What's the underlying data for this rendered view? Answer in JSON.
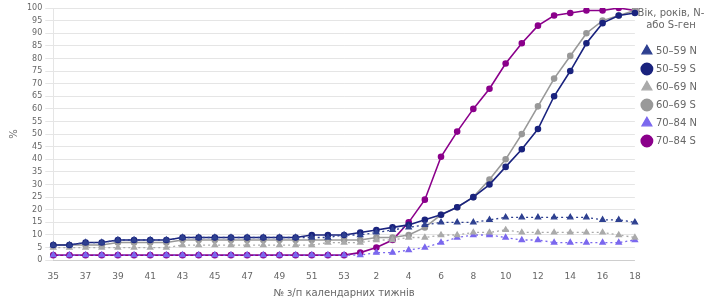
{
  "chart_data": {
    "type": "line",
    "x_label": "№ з/п календарних тижнів",
    "y_label": "%",
    "legend_title": "Вік, років, N-\nабо S-ген",
    "legend": "right",
    "grid": "y",
    "categories": [
      "35",
      null,
      "37",
      null,
      "39",
      null,
      "41",
      null,
      "43",
      null,
      "45",
      null,
      "47",
      null,
      "49",
      null,
      "51",
      null,
      "53",
      null,
      "2",
      null,
      "4",
      null,
      "6",
      null,
      "8",
      null,
      "10",
      null,
      "12",
      null,
      "14",
      null,
      "16",
      null,
      "18"
    ],
    "ylim": [
      0,
      100
    ],
    "yticks": [
      0,
      5,
      10,
      15,
      20,
      25,
      30,
      35,
      40,
      45,
      50,
      55,
      60,
      65,
      70,
      75,
      80,
      85,
      90,
      95,
      100
    ],
    "series": [
      {
        "name": "50–59 N",
        "color": "#2e4090",
        "line_style": "dotted",
        "marker": "triangle",
        "values": [
          6,
          6,
          7,
          7,
          8,
          8,
          8,
          8,
          9,
          9,
          9,
          9,
          9,
          9,
          9,
          9,
          9,
          9,
          10,
          10,
          11,
          12,
          13,
          14,
          15,
          15,
          15,
          16,
          17,
          17,
          17,
          17,
          17,
          17,
          16,
          16,
          15
        ]
      },
      {
        "name": "50–59 S",
        "color": "#1a237e",
        "line_style": "solid",
        "marker": "circle",
        "values": [
          6,
          6,
          7,
          7,
          8,
          8,
          8,
          8,
          9,
          9,
          9,
          9,
          9,
          9,
          9,
          9,
          10,
          10,
          10,
          11,
          12,
          13,
          14,
          16,
          18,
          21,
          25,
          30,
          37,
          44,
          52,
          65,
          75,
          86,
          94,
          97,
          98
        ]
      },
      {
        "name": "60–69 N",
        "color": "#aaaaaa",
        "line_style": "dotted",
        "marker": "triangle",
        "values": [
          5,
          5,
          5,
          5,
          5,
          5,
          5,
          5,
          6,
          6,
          6,
          6,
          6,
          6,
          6,
          6,
          6,
          7,
          7,
          7,
          8,
          8,
          9,
          9,
          10,
          10,
          11,
          11,
          12,
          11,
          11,
          11,
          11,
          11,
          11,
          10,
          9
        ]
      },
      {
        "name": "60–69 S",
        "color": "#999999",
        "line_style": "solid",
        "marker": "circle",
        "values": [
          6,
          6,
          6,
          6,
          7,
          7,
          7,
          7,
          8,
          8,
          8,
          8,
          8,
          8,
          8,
          8,
          8,
          8,
          8,
          8,
          9,
          9,
          10,
          13,
          18,
          21,
          25,
          32,
          40,
          50,
          61,
          72,
          81,
          90,
          95,
          97,
          99
        ]
      },
      {
        "name": "70–84 N",
        "color": "#7b68ee",
        "line_style": "dotted",
        "marker": "triangle",
        "values": [
          2,
          2,
          2,
          2,
          2,
          2,
          2,
          2,
          2,
          2,
          2,
          2,
          2,
          2,
          2,
          2,
          2,
          2,
          2,
          2,
          3,
          3,
          4,
          5,
          7,
          9,
          10,
          10,
          9,
          8,
          8,
          7,
          7,
          7,
          7,
          7,
          8
        ]
      },
      {
        "name": "70–84 S",
        "color": "#8b008b",
        "line_style": "solid",
        "marker": "circle",
        "values": [
          2,
          2,
          2,
          2,
          2,
          2,
          2,
          2,
          2,
          2,
          2,
          2,
          2,
          2,
          2,
          2,
          2,
          2,
          2,
          3,
          5,
          8,
          15,
          24,
          41,
          51,
          60,
          68,
          78,
          86,
          93,
          97,
          98,
          99,
          99,
          100,
          99
        ]
      }
    ]
  }
}
